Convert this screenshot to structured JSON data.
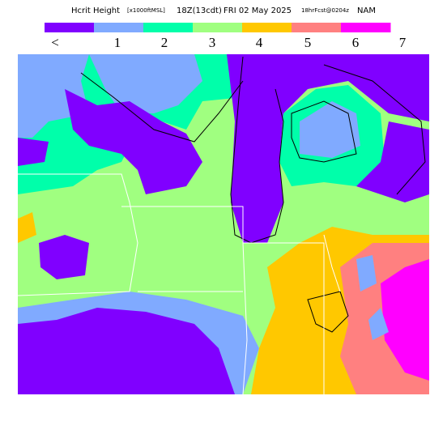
{
  "header": {
    "title_parts": [
      "Hcrit Height",
      "[x1000ftMSL]",
      "18Z(13cdt)",
      "FRI 02 May 2025",
      "18hrFcst@0204z",
      "NAM"
    ]
  },
  "colorbar": {
    "colors": [
      "#8000ff",
      "#80aaff",
      "#00ffaa",
      "#a0ff80",
      "#ffc800",
      "#ff8080",
      "#ff00ff"
    ],
    "labels": [
      "<",
      "1",
      "2",
      "3",
      "4",
      "5",
      "6",
      "7"
    ]
  }
}
